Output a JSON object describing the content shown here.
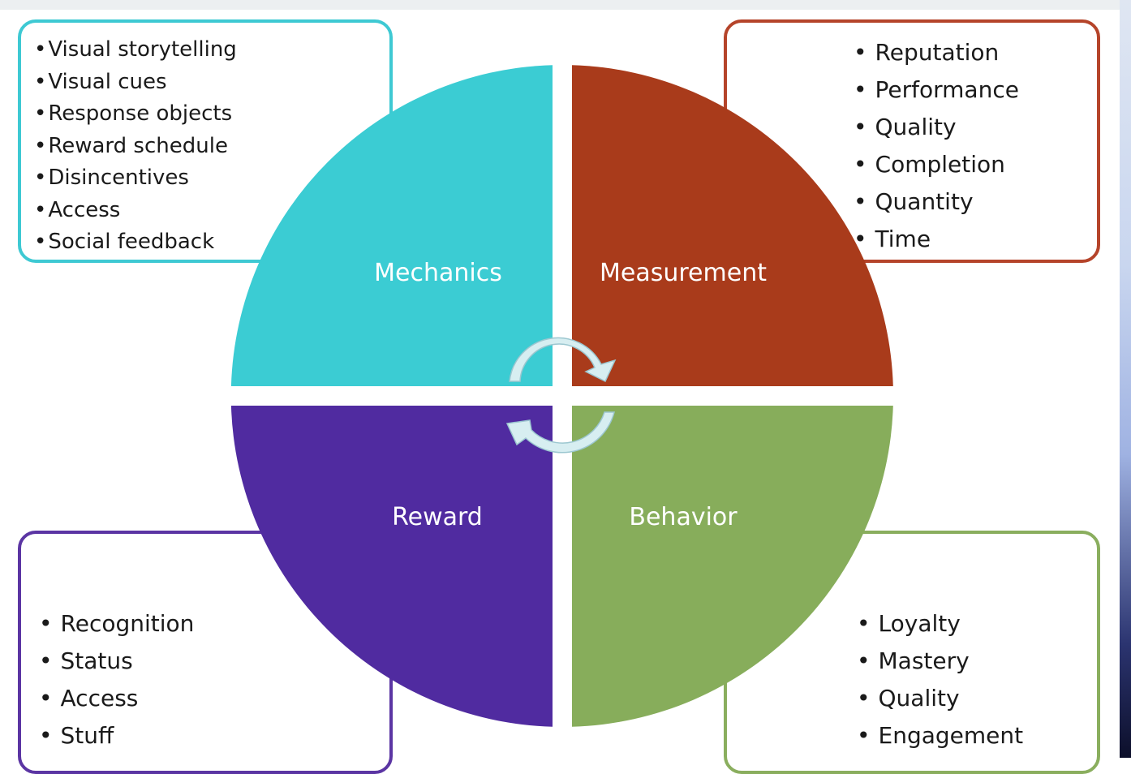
{
  "quadrants": {
    "mechanics": {
      "label": "Mechanics",
      "color": "#3bccd3",
      "items": [
        "Visual storytelling",
        "Visual cues",
        "Response objects",
        "Reward schedule",
        "Disincentives",
        "Access",
        "Social feedback"
      ]
    },
    "measurement": {
      "label": "Measurement",
      "color": "#a93b1b",
      "items": [
        "Reputation",
        "Performance",
        "Quality",
        "Completion",
        "Quantity",
        "Time"
      ]
    },
    "reward": {
      "label": "Reward",
      "color": "#502ba0",
      "items": [
        "Recognition",
        "Status",
        "Access",
        "Stuff"
      ]
    },
    "behavior": {
      "label": "Behavior",
      "color": "#87ad5b",
      "items": [
        "Loyalty",
        "Mastery",
        "Quality",
        "Engagement"
      ]
    }
  },
  "bullet": "•",
  "cycle_arrow_color": "#d7eef1",
  "cycle_arrow_edge": "#9cc7d0"
}
